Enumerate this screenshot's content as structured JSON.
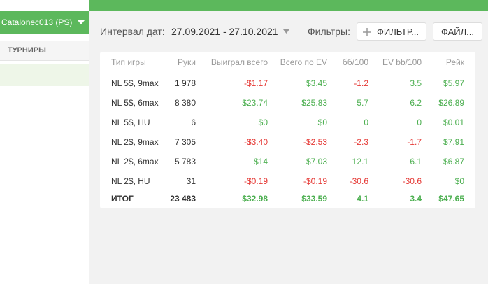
{
  "header": {
    "account": "Catalonec013 (PS)"
  },
  "sidebar": {
    "items": [
      "ТУРНИРЫ"
    ]
  },
  "toolbar": {
    "date_label": "Интервал дат:",
    "date_range": "27.09.2021 - 27.10.2021",
    "filters_label": "Фильтры:",
    "filter_button": "ФИЛЬТР...",
    "file_button": "ФАЙЛ..."
  },
  "table": {
    "columns": [
      "Тип игры",
      "Руки",
      "Выиграл всего",
      "Всего по EV",
      "бб/100",
      "EV bb/100",
      "Рейк"
    ],
    "rows": [
      [
        "NL 5$, 9max",
        "1 978",
        "-$1.17",
        "$3.45",
        "-1.2",
        "3.5",
        "$5.97"
      ],
      [
        "NL 5$, 6max",
        "8 380",
        "$23.74",
        "$25.83",
        "5.7",
        "6.2",
        "$26.89"
      ],
      [
        "NL 5$, HU",
        "6",
        "$0",
        "$0",
        "0",
        "0",
        "$0.01"
      ],
      [
        "NL 2$, 9max",
        "7 305",
        "-$3.40",
        "-$2.53",
        "-2.3",
        "-1.7",
        "$7.91"
      ],
      [
        "NL 2$, 6max",
        "5 783",
        "$14",
        "$7.03",
        "12.1",
        "6.1",
        "$6.87"
      ],
      [
        "NL 2$, HU",
        "31",
        "-$0.19",
        "-$0.19",
        "-30.6",
        "-30.6",
        "$0"
      ]
    ],
    "total": [
      "ИТОГ",
      "23 483",
      "$32.98",
      "$33.59",
      "4.1",
      "3.4",
      "$47.65"
    ]
  }
}
